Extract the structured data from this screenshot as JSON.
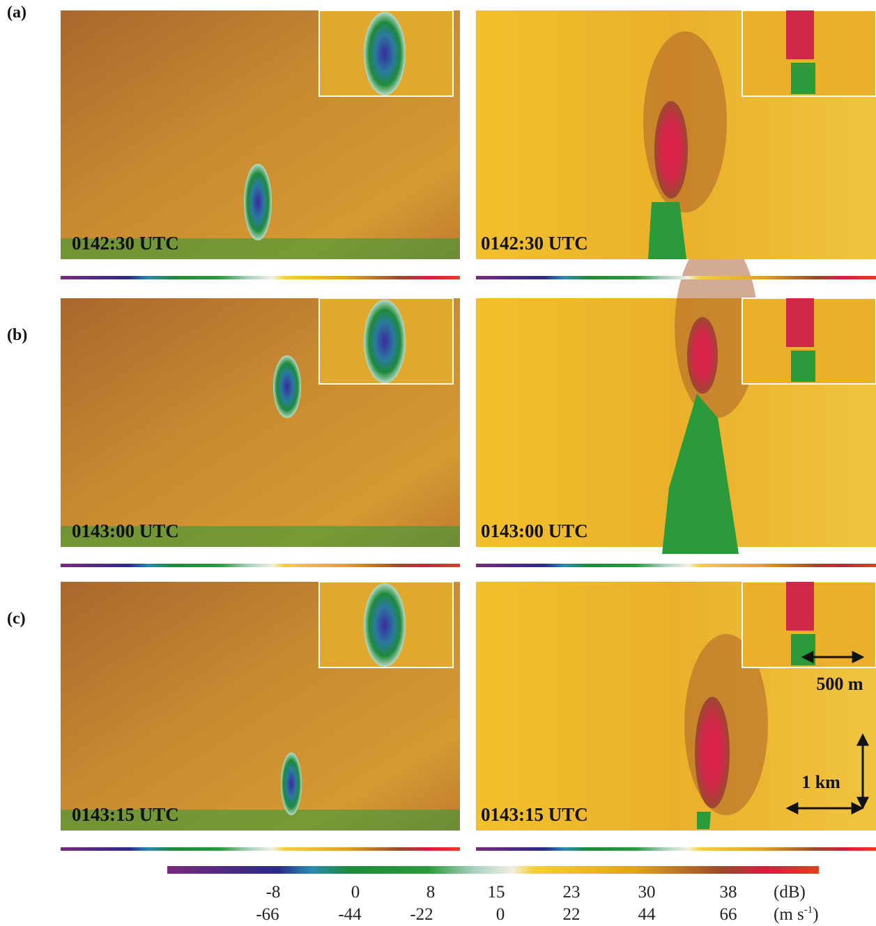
{
  "panels": [
    {
      "label": "(a)",
      "left_time": "0142:30 UTC",
      "right_time": "0142:30 UTC"
    },
    {
      "label": "(b)",
      "left_time": "0143:00 UTC",
      "right_time": "0143:00 UTC"
    },
    {
      "label": "(c)",
      "left_time": "0143:15 UTC",
      "right_time": "0143:15 UTC"
    }
  ],
  "scale": {
    "horizontal": "500 m",
    "vertical": "1 km"
  },
  "colorbar": {
    "reflectivity_labels": [
      -8,
      0,
      8,
      15,
      23,
      30,
      38
    ],
    "reflectivity_unit": "(dB)",
    "velocity_labels": [
      -66,
      -44,
      -22,
      0,
      22,
      44,
      66
    ],
    "velocity_unit": {
      "base": "(m s",
      "exponent": "-1",
      "close": ")"
    }
  }
}
